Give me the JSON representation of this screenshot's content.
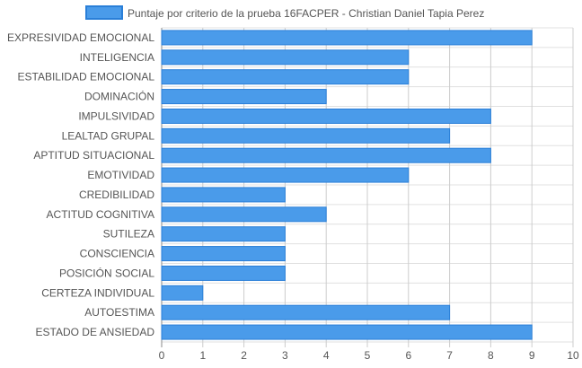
{
  "chart_data": {
    "type": "bar",
    "orientation": "horizontal",
    "categories": [
      "EXPRESIVIDAD EMOCIONAL",
      "INTELIGENCIA",
      "ESTABILIDAD EMOCIONAL",
      "DOMINACIÓN",
      "IMPULSIVIDAD",
      "LEALTAD GRUPAL",
      "APTITUD SITUACIONAL",
      "EMOTIVIDAD",
      "CREDIBILIDAD",
      "ACTITUD COGNITIVA",
      "SUTILEZA",
      "CONSCIENCIA",
      "POSICIÓN SOCIAL",
      "CERTEZA INDIVIDUAL",
      "AUTOESTIMA",
      "ESTADO DE ANSIEDAD"
    ],
    "series": [
      {
        "name": "Puntaje por criterio de la prueba 16FACPER - Christian Daniel Tapia Perez",
        "values": [
          9,
          6,
          6,
          4,
          8,
          7,
          8,
          6,
          3,
          4,
          3,
          3,
          3,
          1,
          7,
          9
        ]
      }
    ],
    "xlim": [
      0,
      10
    ],
    "xticks": [
      0,
      1,
      2,
      3,
      4,
      5,
      6,
      7,
      8,
      9,
      10
    ],
    "grid": true,
    "legend_position": "top",
    "colors": {
      "bar_fill": "#4a9bea",
      "bar_stroke": "#2a7fd8",
      "grid": "#e0e0e0",
      "text": "#555555"
    }
  }
}
